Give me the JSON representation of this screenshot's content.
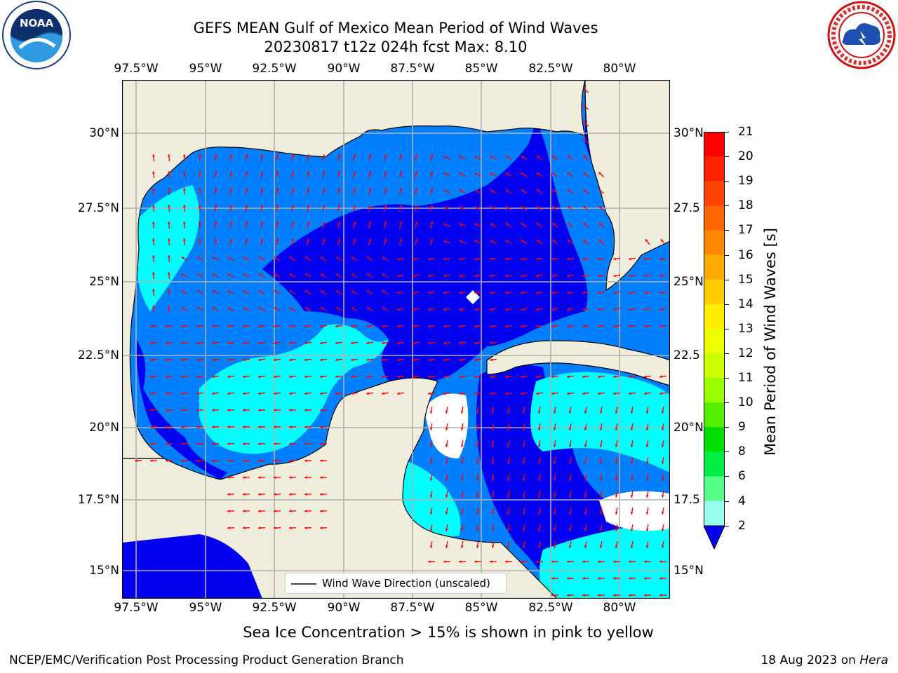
{
  "title": {
    "line1": "GEFS MEAN Gulf of Mexico Mean Period of Wind Waves",
    "line2": "20230817 t12z 024h fcst   Max: 8.10"
  },
  "axes": {
    "lon_labels": [
      "97.5°W",
      "95°W",
      "92.5°W",
      "90°W",
      "87.5°W",
      "85°W",
      "82.5°W",
      "80°W"
    ],
    "lat_labels_left": [
      "30°N",
      "27.5°N",
      "25°N",
      "22.5°N",
      "20°N",
      "17.5°N",
      "15°N"
    ],
    "lat_labels_right": [
      "30°N",
      "27.5",
      "25°N",
      "22.5",
      "20°N",
      "17.5",
      "15°N"
    ]
  },
  "legend": {
    "label": "Wind Wave Direction (unscaled)"
  },
  "colorbar": {
    "label": "Mean Period of Wind Waves [s]",
    "ticks": [
      "21",
      "20",
      "19",
      "18",
      "17",
      "16",
      "15",
      "14",
      "13",
      "12",
      "11",
      "10",
      "9",
      "8",
      "6",
      "4",
      "2"
    ],
    "colors": [
      "#ff0000",
      "#ff2200",
      "#ff4400",
      "#ff6600",
      "#ff8800",
      "#ffaa00",
      "#ffcc00",
      "#ffee00",
      "#eeff00",
      "#ccff00",
      "#99ff00",
      "#55ee00",
      "#00dd00",
      "#00ee44",
      "#55ff88",
      "#99ffee",
      "#55ffff",
      "#00ffff",
      "#00ddff",
      "#0080ff",
      "#0000ee"
    ]
  },
  "colors": {
    "land": "#efeedd",
    "ocean_low": "#0000ee",
    "ocean_mid": "#0080ff",
    "ocean_high": "#00ffff",
    "arrow": "#ff0000"
  },
  "note": "Sea Ice Concentration > 15% is shown in pink to yellow",
  "footer": {
    "left": "NCEP/EMC/Verification Post Processing Product Generation Branch",
    "right_date": "18 Aug 2023 on ",
    "right_host": "Hera"
  },
  "logos": {
    "noaa": "NOAA",
    "nws": "NATIONAL WEATHER SERVICE"
  }
}
